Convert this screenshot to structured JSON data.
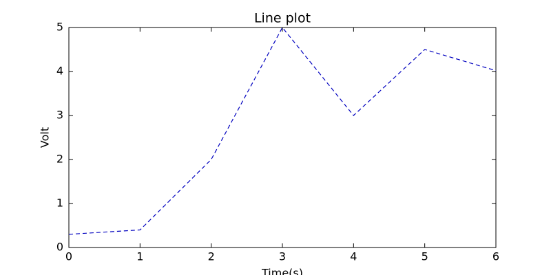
{
  "chart_data": {
    "type": "line",
    "title": "Line plot",
    "xlabel": "Time(s)",
    "ylabel": "Volt",
    "x": [
      0,
      1,
      2,
      3,
      4,
      5,
      6
    ],
    "series": [
      {
        "color": "#0000bf",
        "dash": true,
        "values": [
          0.3,
          0.4,
          2,
          5,
          3,
          4.5,
          4.02
        ]
      }
    ],
    "xlim": [
      0,
      6
    ],
    "xticks": [
      0,
      1,
      2,
      3,
      4,
      5,
      6
    ],
    "ylim": [
      0,
      5
    ],
    "yticks": [
      0,
      1,
      2,
      3,
      4,
      5
    ],
    "grid": false
  }
}
